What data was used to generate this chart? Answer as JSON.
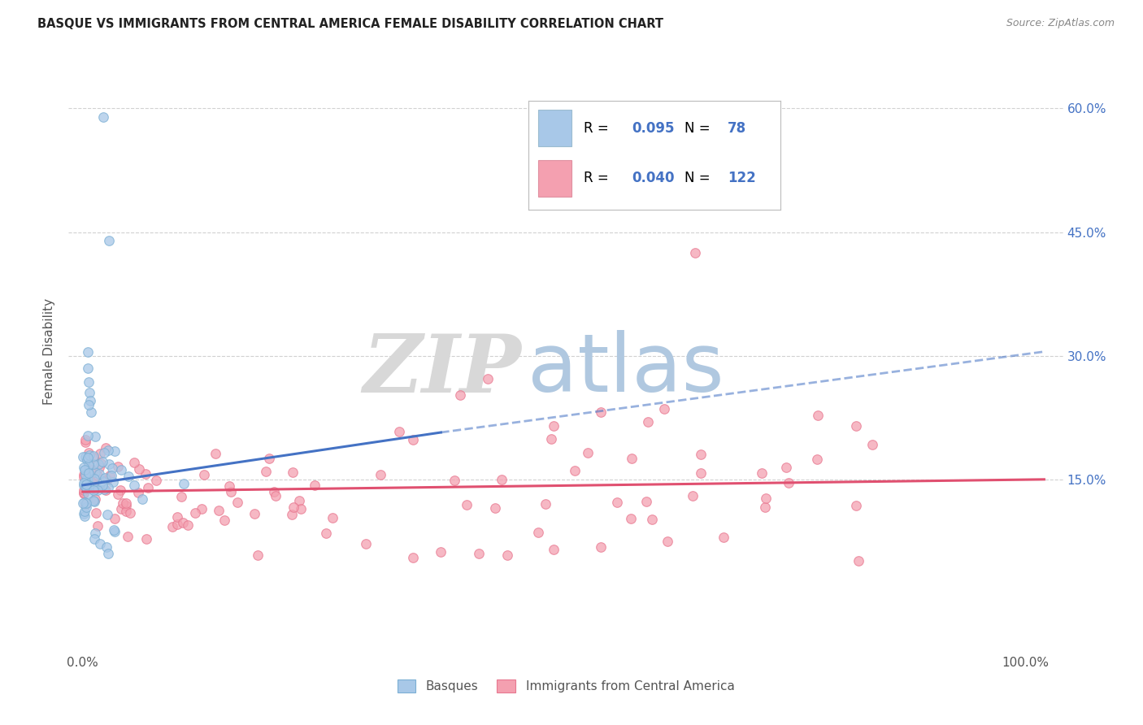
{
  "title": "BASQUE VS IMMIGRANTS FROM CENTRAL AMERICA FEMALE DISABILITY CORRELATION CHART",
  "source": "Source: ZipAtlas.com",
  "ylabel": "Female Disability",
  "basque_color": "#a8c8e8",
  "basque_edge_color": "#7bafd4",
  "immigrant_color": "#f4a0b0",
  "immigrant_edge_color": "#e87890",
  "basque_line_color": "#4472c4",
  "immigrant_line_color": "#e05070",
  "grid_color": "#cccccc",
  "background_color": "#ffffff",
  "tick_color": "#555555",
  "right_tick_color": "#4472c4",
  "legend_text_color": "#000000",
  "legend_value_color": "#4472c4",
  "title_color": "#222222",
  "source_color": "#888888",
  "watermark_zip_color": "#d8d8d8",
  "watermark_atlas_color": "#b0c8e0",
  "basque_R": "0.095",
  "basque_N": "78",
  "immigrant_R": "0.040",
  "immigrant_N": "122",
  "legend_label1": "R = 0.095  N =  78",
  "legend_label2": "R = 0.040  N = 122",
  "bottom_legend1": "Basques",
  "bottom_legend2": "Immigrants from Central America"
}
